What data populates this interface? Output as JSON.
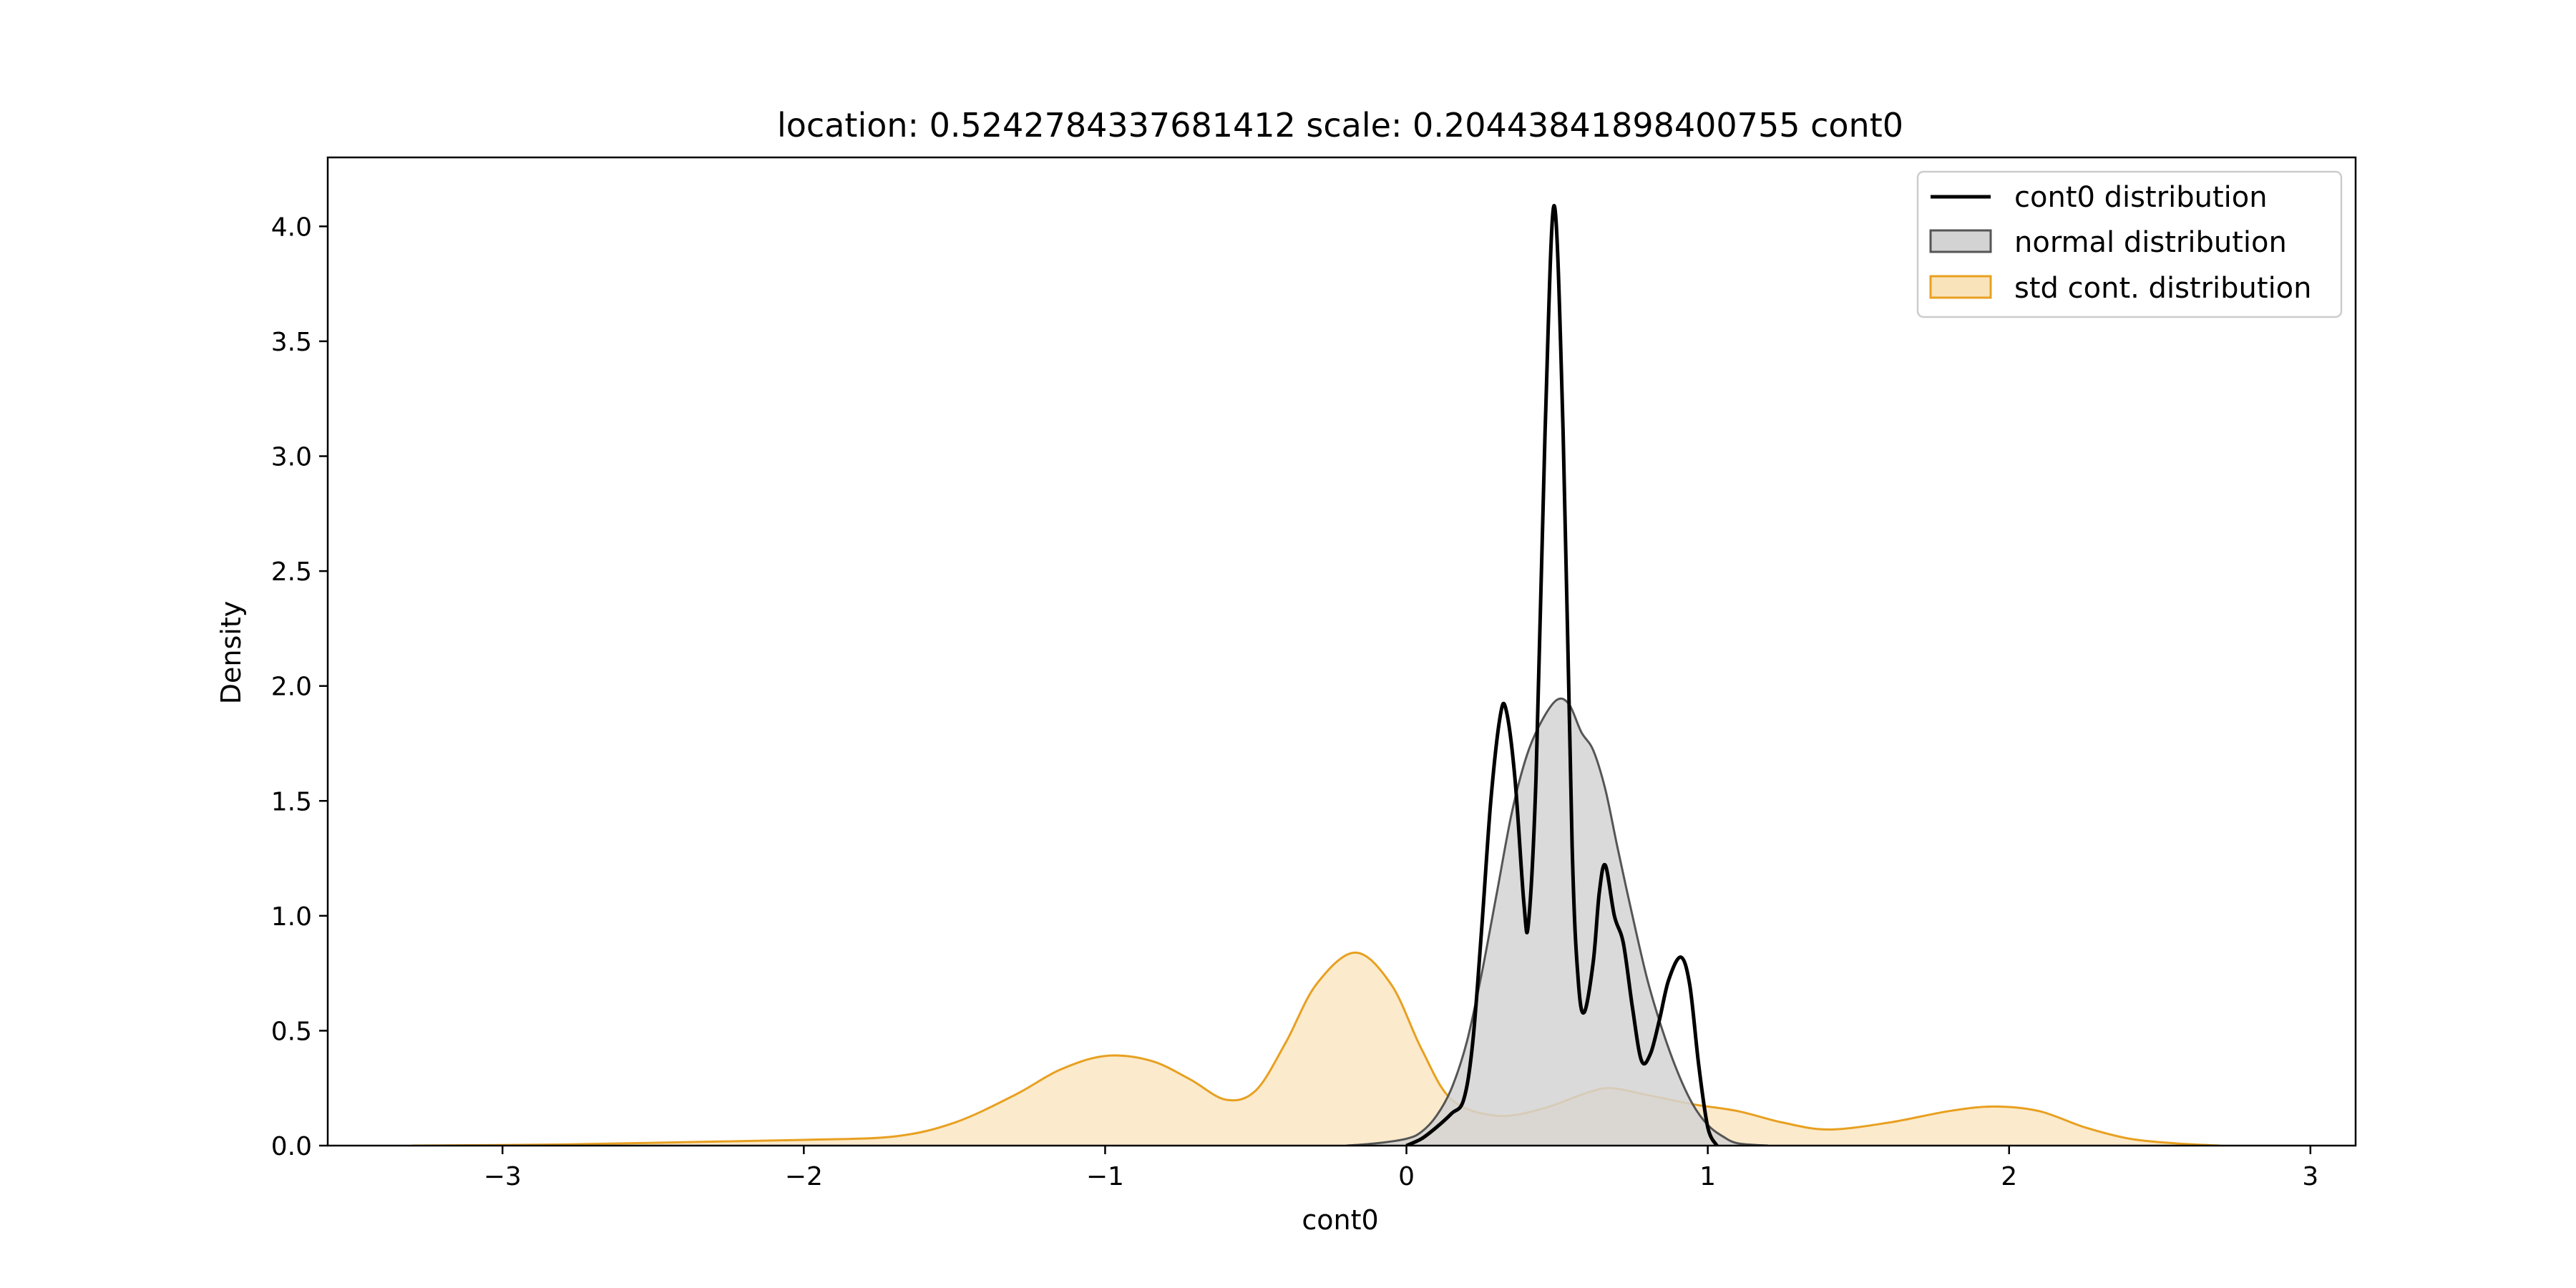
{
  "chart_data": {
    "type": "area",
    "title": "location: 0.5242784337681412 scale: 0.20443841898400755 cont0",
    "xlabel": "cont0",
    "ylabel": "Density",
    "xlim": [
      -3.58,
      3.15
    ],
    "ylim": [
      0,
      4.3
    ],
    "xticks": [
      -3,
      -2,
      -1,
      0,
      1,
      2,
      3
    ],
    "xtick_labels": [
      "−3",
      "−2",
      "−1",
      "0",
      "1",
      "2",
      "3"
    ],
    "yticks": [
      0,
      0.5,
      1,
      1.5,
      2,
      2.5,
      3,
      3.5,
      4
    ],
    "ytick_labels": [
      "0.0",
      "0.5",
      "1.0",
      "1.5",
      "2.0",
      "2.5",
      "3.0",
      "3.5",
      "4.0"
    ],
    "grid": false,
    "legend_position": "top-right",
    "series": [
      {
        "name": "cont0 distribution",
        "kind": "line",
        "color": "#000000",
        "points": [
          [
            0.0,
            0.0
          ],
          [
            0.05,
            0.03
          ],
          [
            0.1,
            0.08
          ],
          [
            0.15,
            0.14
          ],
          [
            0.19,
            0.2
          ],
          [
            0.22,
            0.45
          ],
          [
            0.25,
            0.95
          ],
          [
            0.28,
            1.5
          ],
          [
            0.31,
            1.86
          ],
          [
            0.33,
            1.9
          ],
          [
            0.36,
            1.6
          ],
          [
            0.39,
            1.05
          ],
          [
            0.405,
            0.97
          ],
          [
            0.43,
            1.6
          ],
          [
            0.46,
            3.1
          ],
          [
            0.49,
            4.09
          ],
          [
            0.52,
            3.1
          ],
          [
            0.55,
            1.3
          ],
          [
            0.57,
            0.72
          ],
          [
            0.59,
            0.58
          ],
          [
            0.62,
            0.8
          ],
          [
            0.64,
            1.1
          ],
          [
            0.66,
            1.22
          ],
          [
            0.69,
            1.0
          ],
          [
            0.72,
            0.88
          ],
          [
            0.75,
            0.6
          ],
          [
            0.78,
            0.37
          ],
          [
            0.81,
            0.4
          ],
          [
            0.84,
            0.55
          ],
          [
            0.87,
            0.72
          ],
          [
            0.91,
            0.82
          ],
          [
            0.94,
            0.7
          ],
          [
            0.97,
            0.35
          ],
          [
            1.0,
            0.08
          ],
          [
            1.03,
            0.0
          ]
        ]
      },
      {
        "name": "normal distribution",
        "kind": "area",
        "color": "#555555",
        "fill": "#d3d3d3",
        "points": [
          [
            -0.2,
            0.0
          ],
          [
            -0.1,
            0.01
          ],
          [
            0.0,
            0.03
          ],
          [
            0.05,
            0.06
          ],
          [
            0.1,
            0.13
          ],
          [
            0.15,
            0.25
          ],
          [
            0.2,
            0.45
          ],
          [
            0.25,
            0.75
          ],
          [
            0.3,
            1.1
          ],
          [
            0.35,
            1.45
          ],
          [
            0.4,
            1.7
          ],
          [
            0.45,
            1.85
          ],
          [
            0.5,
            1.94
          ],
          [
            0.54,
            1.92
          ],
          [
            0.58,
            1.8
          ],
          [
            0.62,
            1.72
          ],
          [
            0.66,
            1.55
          ],
          [
            0.7,
            1.3
          ],
          [
            0.75,
            1.0
          ],
          [
            0.8,
            0.72
          ],
          [
            0.85,
            0.5
          ],
          [
            0.9,
            0.32
          ],
          [
            0.95,
            0.18
          ],
          [
            1.0,
            0.09
          ],
          [
            1.05,
            0.04
          ],
          [
            1.1,
            0.01
          ],
          [
            1.2,
            0.0
          ]
        ]
      },
      {
        "name": "std cont. distribution",
        "kind": "area",
        "color": "#e8a020",
        "fill": "#f9e3bb",
        "points": [
          [
            -3.3,
            0.0
          ],
          [
            -2.8,
            0.005
          ],
          [
            -2.4,
            0.015
          ],
          [
            -2.0,
            0.025
          ],
          [
            -1.7,
            0.04
          ],
          [
            -1.5,
            0.1
          ],
          [
            -1.3,
            0.22
          ],
          [
            -1.15,
            0.33
          ],
          [
            -1.0,
            0.39
          ],
          [
            -0.85,
            0.37
          ],
          [
            -0.72,
            0.29
          ],
          [
            -0.6,
            0.2
          ],
          [
            -0.5,
            0.24
          ],
          [
            -0.4,
            0.45
          ],
          [
            -0.3,
            0.7
          ],
          [
            -0.17,
            0.84
          ],
          [
            -0.05,
            0.7
          ],
          [
            0.05,
            0.42
          ],
          [
            0.15,
            0.2
          ],
          [
            0.3,
            0.13
          ],
          [
            0.45,
            0.16
          ],
          [
            0.6,
            0.23
          ],
          [
            0.68,
            0.25
          ],
          [
            0.8,
            0.22
          ],
          [
            0.95,
            0.18
          ],
          [
            1.1,
            0.15
          ],
          [
            1.25,
            0.1
          ],
          [
            1.4,
            0.07
          ],
          [
            1.6,
            0.1
          ],
          [
            1.8,
            0.15
          ],
          [
            1.95,
            0.17
          ],
          [
            2.1,
            0.15
          ],
          [
            2.25,
            0.08
          ],
          [
            2.4,
            0.03
          ],
          [
            2.55,
            0.01
          ],
          [
            2.7,
            0.0
          ]
        ]
      }
    ]
  }
}
